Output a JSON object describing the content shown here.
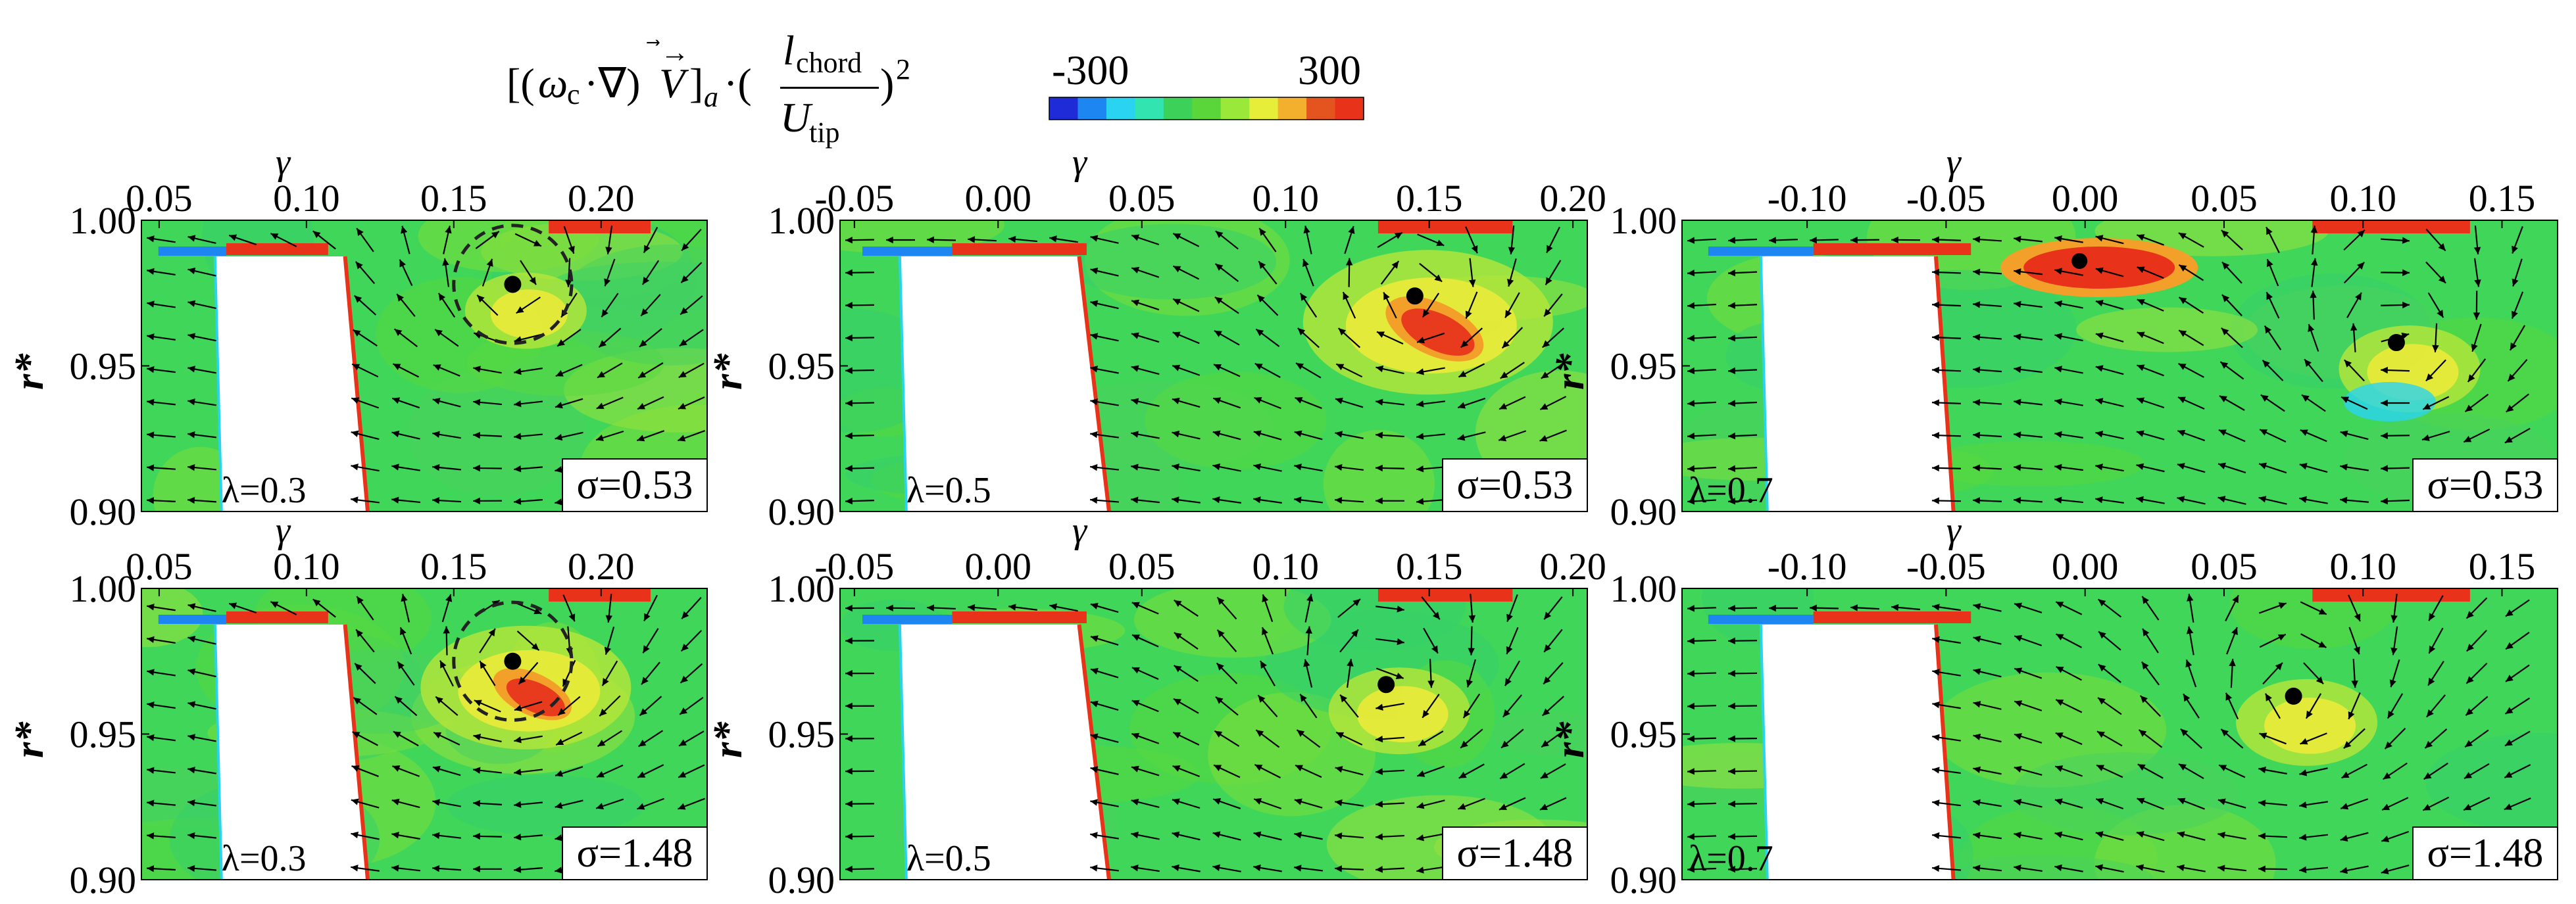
{
  "colorbar": {
    "label_parts": {
      "open": "[(",
      "omega": "ω",
      "omega_sub": "c",
      "dot_nabla": "·∇)",
      "vec": "V",
      "close": "]",
      "close_sub": "a",
      "dot": "·(",
      "num": "l",
      "num_sub": "chord",
      "den": "U",
      "den_sub": "tip",
      "paren_close": ")",
      "power": "2"
    },
    "min_label": "-300",
    "max_label": "300",
    "min": -300,
    "max": 300,
    "colors": [
      "#1f2bd6",
      "#1e86f0",
      "#2ad4f0",
      "#32e4b0",
      "#3cd25a",
      "#5ad63a",
      "#9ae83a",
      "#e6ee3a",
      "#f2b02c",
      "#e4541e",
      "#e8321a"
    ]
  },
  "chart_data": [
    {
      "type": "vector-field-contour",
      "id": "p1",
      "xlabel": "γ",
      "ylabel": "r*",
      "xlim": [
        0.044,
        0.236
      ],
      "ylim": [
        0.9,
        1.0
      ],
      "xticks": [
        "0.05",
        "0.10",
        "0.15",
        "0.20"
      ],
      "xtick_values": [
        0.05,
        0.1,
        0.15,
        0.2
      ],
      "yticks": [
        "1.00",
        "0.95",
        "0.90"
      ],
      "ytick_values": [
        1.0,
        0.95,
        0.9
      ],
      "lambda_label": "λ=0.3",
      "sigma_label": "σ=0.53",
      "vortex_core": {
        "x": 0.17,
        "y": 0.978
      },
      "dashed_circle": {
        "x": 0.17,
        "y": 0.978,
        "r": 0.02
      }
    },
    {
      "type": "vector-field-contour",
      "id": "p2",
      "xlabel": "γ",
      "ylabel": "r*",
      "xlim": [
        -0.055,
        0.205
      ],
      "ylim": [
        0.9,
        1.0
      ],
      "xticks": [
        "-0.05",
        "0.00",
        "0.05",
        "0.10",
        "0.15",
        "0.20"
      ],
      "xtick_values": [
        -0.05,
        0.0,
        0.05,
        0.1,
        0.15,
        0.2
      ],
      "yticks": [
        "1.00",
        "0.95",
        "0.90"
      ],
      "ytick_values": [
        1.0,
        0.95,
        0.9
      ],
      "lambda_label": "λ=0.5",
      "sigma_label": "σ=0.53",
      "vortex_core": {
        "x": 0.145,
        "y": 0.974
      }
    },
    {
      "type": "vector-field-contour",
      "id": "p3",
      "xlabel": "γ",
      "ylabel": "r*",
      "xlim": [
        -0.145,
        0.17
      ],
      "ylim": [
        0.9,
        1.0
      ],
      "xticks": [
        "-0.10",
        "-0.05",
        "0.00",
        "0.05",
        "0.10",
        "0.15"
      ],
      "xtick_values": [
        -0.1,
        -0.05,
        0.0,
        0.05,
        0.1,
        0.15
      ],
      "yticks": [
        "1.00",
        "0.95",
        "0.90"
      ],
      "ytick_values": [
        1.0,
        0.95,
        0.9
      ],
      "lambda_label": "λ=0.7",
      "sigma_label": "σ=0.53",
      "vortex_core": {
        "x": 0.112,
        "y": 0.958
      },
      "vortex_core_2": {
        "x": -0.002,
        "y": 0.986
      }
    },
    {
      "type": "vector-field-contour",
      "id": "p4",
      "xlabel": "γ",
      "ylabel": "r*",
      "xlim": [
        0.044,
        0.236
      ],
      "ylim": [
        0.9,
        1.0
      ],
      "xticks": [
        "0.05",
        "0.10",
        "0.15",
        "0.20"
      ],
      "xtick_values": [
        0.05,
        0.1,
        0.15,
        0.2
      ],
      "yticks": [
        "1.00",
        "0.95",
        "0.90"
      ],
      "ytick_values": [
        1.0,
        0.95,
        0.9
      ],
      "lambda_label": "λ=0.3",
      "sigma_label": "σ=1.48",
      "vortex_core": {
        "x": 0.17,
        "y": 0.975
      },
      "dashed_circle": {
        "x": 0.17,
        "y": 0.975,
        "r": 0.02
      }
    },
    {
      "type": "vector-field-contour",
      "id": "p5",
      "xlabel": "γ",
      "ylabel": "r*",
      "xlim": [
        -0.055,
        0.205
      ],
      "ylim": [
        0.9,
        1.0
      ],
      "xticks": [
        "-0.05",
        "0.00",
        "0.05",
        "0.10",
        "0.15",
        "0.20"
      ],
      "xtick_values": [
        -0.05,
        0.0,
        0.05,
        0.1,
        0.15,
        0.2
      ],
      "yticks": [
        "1.00",
        "0.95",
        "0.90"
      ],
      "ytick_values": [
        1.0,
        0.95,
        0.9
      ],
      "lambda_label": "λ=0.5",
      "sigma_label": "σ=1.48",
      "vortex_core": {
        "x": 0.135,
        "y": 0.967
      }
    },
    {
      "type": "vector-field-contour",
      "id": "p6",
      "xlabel": "γ",
      "ylabel": "r*",
      "xlim": [
        -0.145,
        0.17
      ],
      "ylim": [
        0.9,
        1.0
      ],
      "xticks": [
        "-0.10",
        "-0.05",
        "0.00",
        "0.05",
        "0.10",
        "0.15"
      ],
      "xtick_values": [
        -0.1,
        -0.05,
        0.0,
        0.05,
        0.1,
        0.15
      ],
      "yticks": [
        "1.00",
        "0.95",
        "0.90"
      ],
      "ytick_values": [
        1.0,
        0.95,
        0.9
      ],
      "lambda_label": "λ=0.7",
      "sigma_label": "σ=1.48",
      "vortex_core": {
        "x": 0.075,
        "y": 0.963
      }
    }
  ]
}
